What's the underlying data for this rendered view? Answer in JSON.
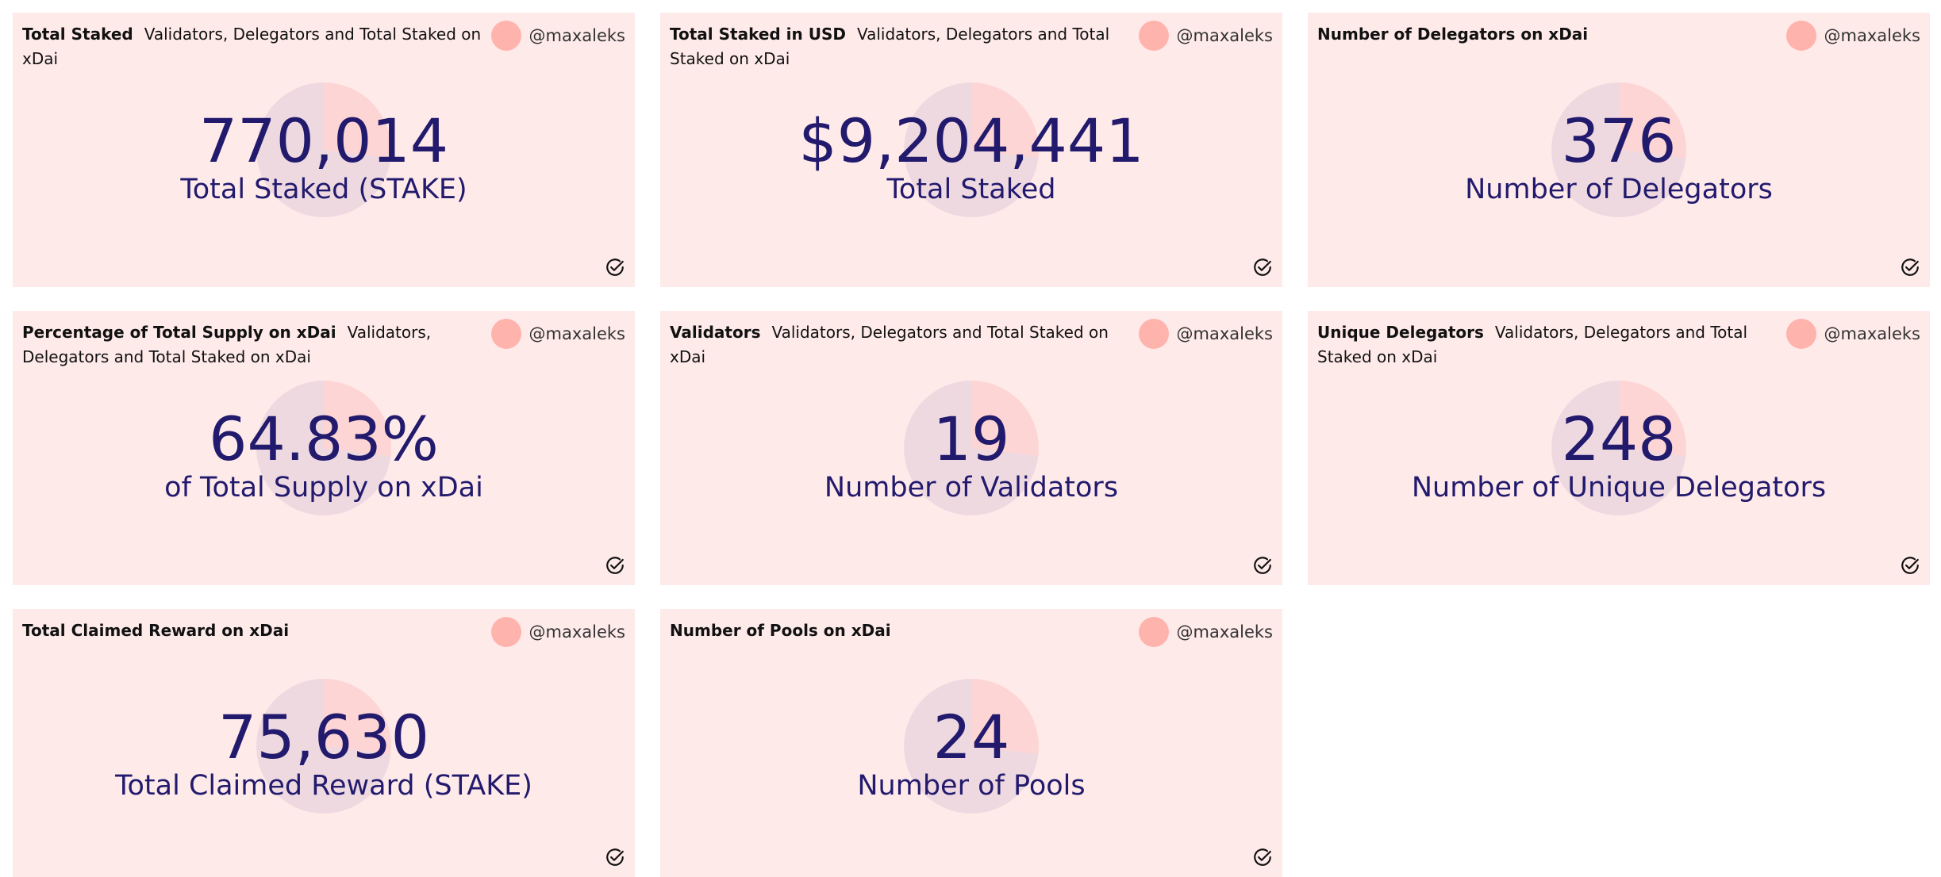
{
  "cards": [
    {
      "title": "Total Staked",
      "subtitle": "Validators, Delegators and Total Staked on xDai",
      "author": "@maxaleks",
      "value": "770,014",
      "label": "Total Staked (STAKE)"
    },
    {
      "title": "Total Staked in USD",
      "subtitle": "Validators, Delegators and Total Staked on xDai",
      "author": "@maxaleks",
      "value": "$9,204,441",
      "label": "Total Staked"
    },
    {
      "title": "Number of Delegators on xDai",
      "subtitle": "",
      "author": "@maxaleks",
      "value": "376",
      "label": "Number of Delegators"
    },
    {
      "title": "Percentage of Total Supply on xDai",
      "subtitle": "Validators, Delegators and Total Staked on xDai",
      "author": "@maxaleks",
      "value": "64.83%",
      "label": "of Total Supply on xDai"
    },
    {
      "title": "Validators",
      "subtitle": "Validators, Delegators and Total Staked on xDai",
      "author": "@maxaleks",
      "value": "19",
      "label": "Number of Validators"
    },
    {
      "title": "Unique Delegators",
      "subtitle": "Validators, Delegators and Total Staked on xDai",
      "author": "@maxaleks",
      "value": "248",
      "label": "Number of Unique Delegators"
    },
    {
      "title": "Total Claimed Reward on xDai",
      "subtitle": "",
      "author": "@maxaleks",
      "value": "75,630",
      "label": "Total Claimed Reward (STAKE)"
    },
    {
      "title": "Number of Pools on xDai",
      "subtitle": "",
      "author": "@maxaleks",
      "value": "24",
      "label": "Number of Pools"
    }
  ],
  "colors": {
    "card_background": "#ffeaea",
    "counter_text": "#221a6d",
    "avatar": "#ffb3ad"
  },
  "icons": {
    "status": "check-circle-icon"
  }
}
